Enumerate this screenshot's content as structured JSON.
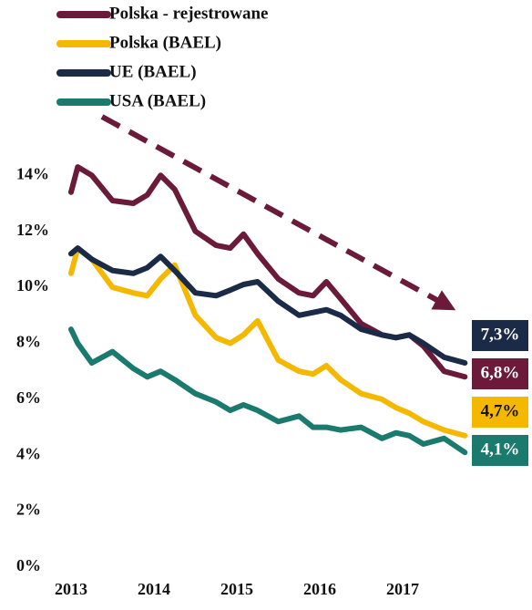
{
  "chart_data": {
    "type": "line",
    "x": [
      2013.0,
      2013.08,
      2013.25,
      2013.5,
      2013.75,
      2013.92,
      2014.08,
      2014.25,
      2014.5,
      2014.75,
      2014.92,
      2015.08,
      2015.25,
      2015.5,
      2015.75,
      2015.92,
      2016.08,
      2016.25,
      2016.5,
      2016.75,
      2016.92,
      2017.08,
      2017.25,
      2017.5,
      2017.75
    ],
    "xlim": [
      2013,
      2017.8
    ],
    "xticks": [
      2013,
      2014,
      2015,
      2016,
      2017
    ],
    "ylim": [
      0,
      14.5
    ],
    "yticks": [
      {
        "value": 0,
        "label": "0%"
      },
      {
        "value": 2,
        "label": "2%"
      },
      {
        "value": 4,
        "label": "4%"
      },
      {
        "value": 6,
        "label": "6%"
      },
      {
        "value": 8,
        "label": "8%"
      },
      {
        "value": 10,
        "label": "10%"
      },
      {
        "value": 12,
        "label": "12%"
      },
      {
        "value": 14,
        "label": "14%"
      }
    ],
    "legend": "top-left",
    "series": [
      {
        "name": "Polska - rejestrowane",
        "color": "#6b1a3a",
        "values": [
          13.4,
          14.3,
          14.0,
          13.1,
          13.0,
          13.3,
          14.0,
          13.5,
          12.0,
          11.5,
          11.4,
          11.9,
          11.2,
          10.3,
          9.8,
          9.7,
          10.2,
          9.6,
          8.7,
          8.3,
          8.2,
          8.3,
          7.9,
          7.0,
          6.8
        ],
        "value_labels": [
          null,
          null,
          null,
          null,
          null,
          null,
          null,
          null,
          null,
          null,
          null,
          null,
          null,
          null,
          null,
          null,
          null,
          null,
          null,
          null,
          null,
          null,
          null,
          null,
          "6,8%"
        ]
      },
      {
        "name": "Polska (BAEL)",
        "color": "#f5b800",
        "values": [
          10.5,
          11.4,
          11.0,
          10.0,
          9.8,
          9.7,
          10.3,
          10.8,
          9.0,
          8.2,
          8.0,
          8.3,
          8.8,
          7.4,
          7.0,
          6.9,
          7.2,
          6.7,
          6.2,
          6.0,
          5.7,
          5.5,
          5.2,
          4.9,
          4.7
        ],
        "value_labels": [
          null,
          null,
          null,
          null,
          null,
          null,
          null,
          null,
          null,
          null,
          null,
          null,
          null,
          null,
          null,
          null,
          null,
          null,
          null,
          null,
          null,
          null,
          null,
          null,
          "4,7%"
        ]
      },
      {
        "name": "UE (BAEL)",
        "color": "#1b2a47",
        "values": [
          11.2,
          11.4,
          11.0,
          10.6,
          10.5,
          10.7,
          11.1,
          10.6,
          9.8,
          9.7,
          9.9,
          10.1,
          10.2,
          9.5,
          9.0,
          9.1,
          9.2,
          9.0,
          8.5,
          8.3,
          8.2,
          8.3,
          8.0,
          7.5,
          7.3
        ],
        "value_labels": [
          null,
          null,
          null,
          null,
          null,
          null,
          null,
          null,
          null,
          null,
          null,
          null,
          null,
          null,
          null,
          null,
          null,
          null,
          null,
          null,
          null,
          null,
          null,
          null,
          "7,3%"
        ]
      },
      {
        "name": "USA (BAEL)",
        "color": "#1a7a6e",
        "values": [
          8.5,
          8.0,
          7.3,
          7.7,
          7.1,
          6.8,
          7.0,
          6.7,
          6.2,
          5.9,
          5.6,
          5.8,
          5.6,
          5.2,
          5.4,
          5.0,
          5.0,
          4.9,
          5.0,
          4.6,
          4.8,
          4.7,
          4.4,
          4.6,
          4.1
        ],
        "value_labels": [
          null,
          null,
          null,
          null,
          null,
          null,
          null,
          null,
          null,
          null,
          null,
          null,
          null,
          null,
          null,
          null,
          null,
          null,
          null,
          null,
          null,
          null,
          null,
          null,
          "4,1%"
        ]
      }
    ]
  }
}
